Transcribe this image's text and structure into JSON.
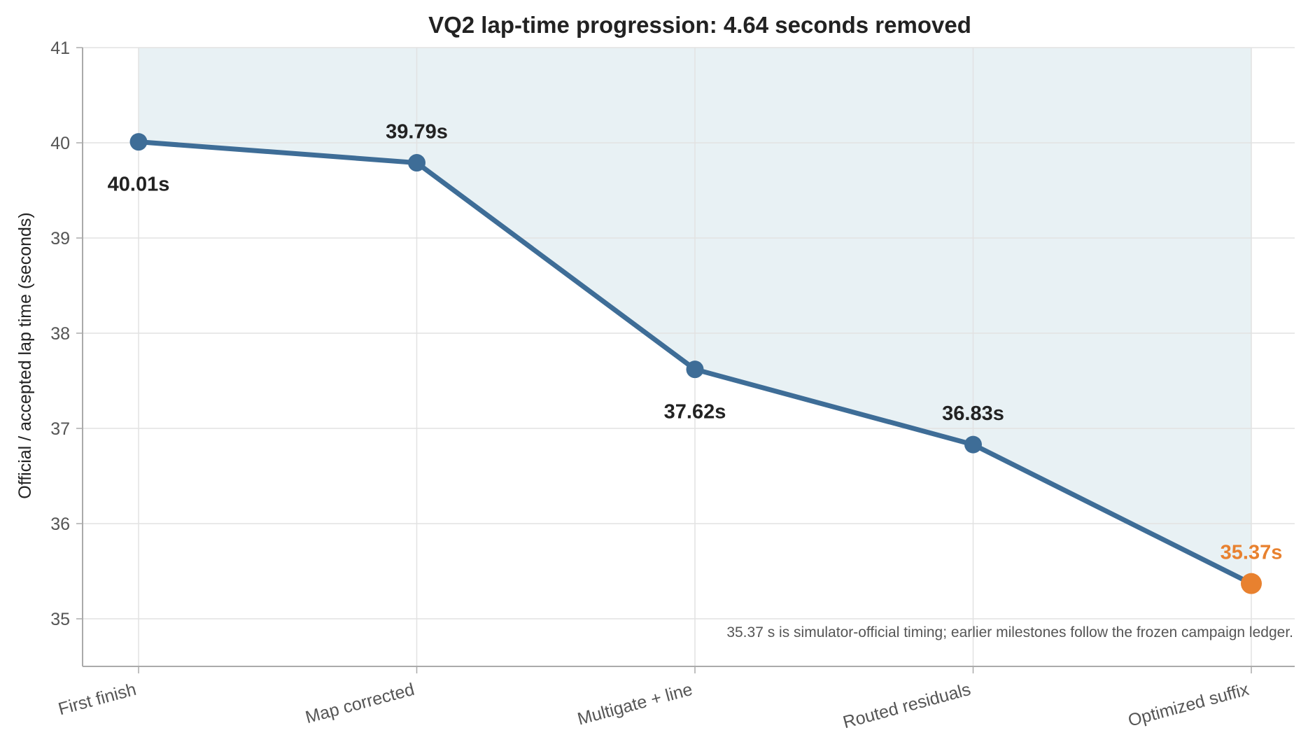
{
  "chart_data": {
    "type": "line",
    "title": "VQ2 lap-time progression: 4.64 seconds removed",
    "xlabel": "",
    "ylabel": "Official / accepted lap time (seconds)",
    "categories": [
      "First finish",
      "Map corrected",
      "Multigate + line",
      "Routed residuals",
      "Optimized suffix"
    ],
    "series": [
      {
        "values": [
          40.01,
          39.79,
          37.62,
          36.83,
          35.37
        ]
      }
    ],
    "data_labels": [
      "40.01s",
      "39.79s",
      "37.62s",
      "36.83s",
      "35.37s"
    ],
    "ylim": [
      34.5,
      41
    ],
    "yticks": [
      "35",
      "36",
      "37",
      "38",
      "39",
      "40",
      "41"
    ],
    "grid": true,
    "area_fill_to": 41,
    "highlight_last_point": true,
    "annotation": "35.37 s is simulator-official timing; earlier milestones follow the frozen campaign ledger.",
    "colors": {
      "line": "#3e6d97",
      "highlight": "#e8812f",
      "fill": "#e8f1f4",
      "grid": "#e2e2e2",
      "axis": "#aaaaaa",
      "label": "#222222"
    }
  }
}
